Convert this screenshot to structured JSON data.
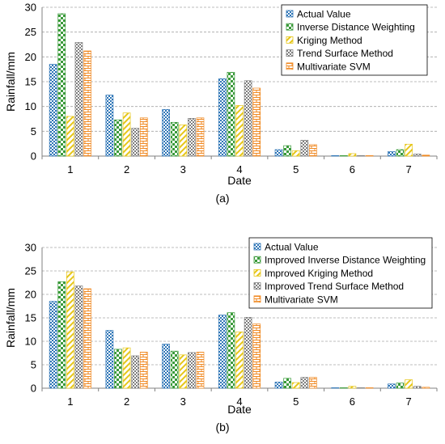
{
  "figure": {
    "panel_labels": [
      "(a)",
      "(b)"
    ]
  },
  "chart_data": [
    {
      "type": "bar",
      "panel": "(a)",
      "title": "",
      "xlabel": "Date",
      "ylabel": "Rainfall/mm",
      "ylim": [
        0,
        30
      ],
      "yticks": [
        0,
        5,
        10,
        15,
        20,
        25,
        30
      ],
      "grid": "dashed horizontal",
      "legend_position": "top-right",
      "categories": [
        "1",
        "2",
        "3",
        "4",
        "5",
        "6",
        "7"
      ],
      "series": [
        {
          "name": "Actual Value",
          "color": "#2e75b6",
          "pattern": "checker",
          "values": [
            18.5,
            12.3,
            9.4,
            15.6,
            1.3,
            0.1,
            0.9
          ]
        },
        {
          "name": "Inverse Distance Weighting",
          "color": "#3a9a3a",
          "pattern": "checker",
          "values": [
            28.7,
            7.3,
            6.8,
            16.9,
            2.1,
            0.1,
            1.3
          ]
        },
        {
          "name": "Kriging Method",
          "color": "#e6c619",
          "pattern": "diagonal",
          "values": [
            8.0,
            8.7,
            6.3,
            10.2,
            1.1,
            0.5,
            2.4
          ]
        },
        {
          "name": "Trend Surface Method",
          "color": "#7f7f7f",
          "pattern": "checker",
          "values": [
            22.9,
            5.6,
            7.6,
            15.2,
            3.2,
            0.1,
            0.4
          ]
        },
        {
          "name": "Multivariate SVM",
          "color": "#f08a24",
          "pattern": "brick",
          "values": [
            21.2,
            7.7,
            7.7,
            13.7,
            2.3,
            0.1,
            0.2
          ]
        }
      ]
    },
    {
      "type": "bar",
      "panel": "(b)",
      "title": "",
      "xlabel": "Date",
      "ylabel": "Rainfall/mm",
      "ylim": [
        0,
        30
      ],
      "yticks": [
        0,
        5,
        10,
        15,
        20,
        25,
        30
      ],
      "grid": "dashed horizontal",
      "legend_position": "top-right",
      "categories": [
        "1",
        "2",
        "3",
        "4",
        "5",
        "6",
        "7"
      ],
      "series": [
        {
          "name": "Actual Value",
          "color": "#2e75b6",
          "pattern": "checker",
          "values": [
            18.5,
            12.3,
            9.4,
            15.6,
            1.3,
            0.1,
            0.9
          ]
        },
        {
          "name": "Improved Inverse Distance Weighting",
          "color": "#3a9a3a",
          "pattern": "checker",
          "values": [
            22.7,
            8.3,
            7.9,
            16.1,
            2.1,
            0.1,
            1.1
          ]
        },
        {
          "name": "Improved Kriging Method",
          "color": "#e6c619",
          "pattern": "diagonal",
          "values": [
            24.8,
            8.6,
            7.1,
            12.0,
            1.2,
            0.4,
            1.8
          ]
        },
        {
          "name": "Improved Trend Surface Method",
          "color": "#7f7f7f",
          "pattern": "checker",
          "values": [
            21.8,
            6.9,
            7.6,
            15.1,
            2.3,
            0.1,
            0.4
          ]
        },
        {
          "name": "Multivariate SVM",
          "color": "#f08a24",
          "pattern": "brick",
          "values": [
            21.2,
            7.7,
            7.7,
            13.7,
            2.3,
            0.1,
            0.2
          ]
        }
      ]
    }
  ]
}
